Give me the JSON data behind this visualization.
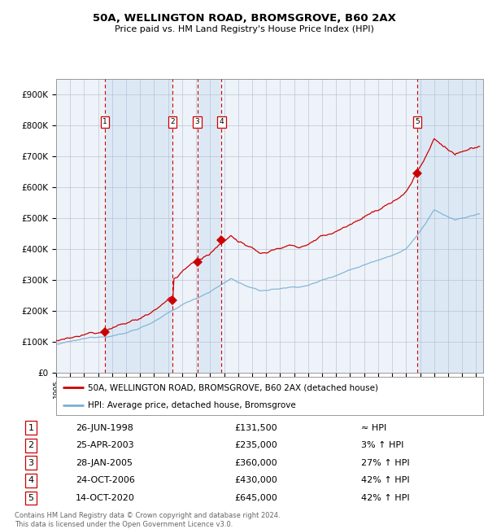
{
  "title": "50A, WELLINGTON ROAD, BROMSGROVE, B60 2AX",
  "subtitle": "Price paid vs. HM Land Registry's House Price Index (HPI)",
  "sales": [
    {
      "num": 1,
      "date": "26-JUN-1998",
      "date_val": 1998.49,
      "price": 131500,
      "pct": "≈ HPI"
    },
    {
      "num": 2,
      "date": "25-APR-2003",
      "date_val": 2003.32,
      "price": 235000,
      "pct": "3% ↑ HPI"
    },
    {
      "num": 3,
      "date": "28-JAN-2005",
      "date_val": 2005.08,
      "price": 360000,
      "pct": "27% ↑ HPI"
    },
    {
      "num": 4,
      "date": "24-OCT-2006",
      "date_val": 2006.82,
      "price": 430000,
      "pct": "42% ↑ HPI"
    },
    {
      "num": 5,
      "date": "14-OCT-2020",
      "date_val": 2020.79,
      "price": 645000,
      "pct": "42% ↑ HPI"
    }
  ],
  "xlim": [
    1995.0,
    2025.5
  ],
  "ylim": [
    0,
    950000
  ],
  "yticks": [
    0,
    100000,
    200000,
    300000,
    400000,
    500000,
    600000,
    700000,
    800000,
    900000
  ],
  "ytick_labels": [
    "£0",
    "£100K",
    "£200K",
    "£300K",
    "£400K",
    "£500K",
    "£600K",
    "£700K",
    "£800K",
    "£900K"
  ],
  "red_line_color": "#cc0000",
  "blue_line_color": "#7bafd4",
  "chart_bg_color": "#dce9f5",
  "band_color": "#eef3f9",
  "grid_color": "#b0b8d0",
  "sale_line_color": "#cc0000",
  "legend_line1": "50A, WELLINGTON ROAD, BROMSGROVE, B60 2AX (detached house)",
  "legend_line2": "HPI: Average price, detached house, Bromsgrove",
  "footnote": "Contains HM Land Registry data © Crown copyright and database right 2024.\nThis data is licensed under the Open Government Licence v3.0."
}
